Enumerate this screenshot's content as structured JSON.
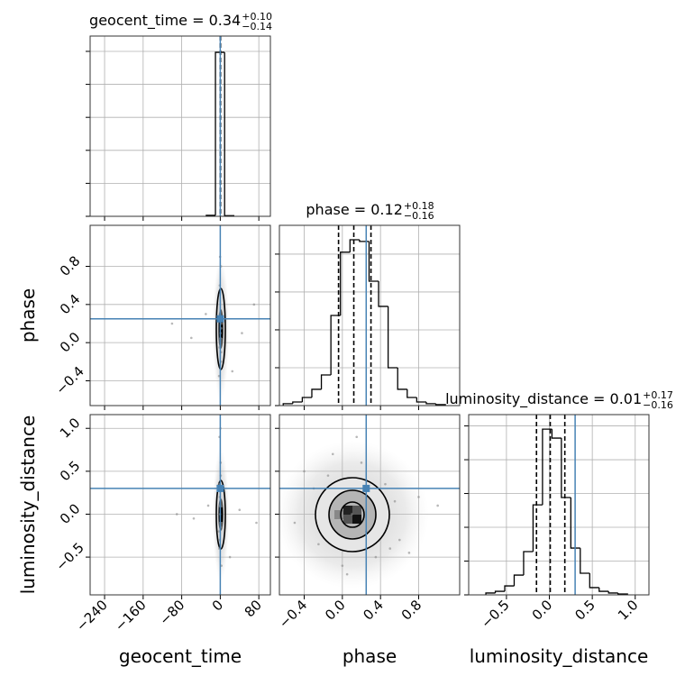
{
  "chart_data": {
    "type": "corner",
    "grid": true,
    "truth_color": "#4682b4",
    "parameters": [
      {
        "name": "geocent_time",
        "lim": [
          -270,
          104
        ],
        "ticks": [
          {
            "value": -240,
            "label": "−240"
          },
          {
            "value": -160,
            "label": "−160"
          },
          {
            "value": -80,
            "label": "−80"
          },
          0,
          80
        ],
        "truth": 0,
        "quantiles": [
          0.2,
          0.34,
          0.44
        ],
        "title": "geocent_time = 0.34",
        "title_sup": "+0.10",
        "title_sub": "−0.14",
        "hist": {
          "bins": [
            -29,
            -10,
            9,
            28
          ],
          "counts": [
            30,
            4970,
            20
          ],
          "ylim": [
            0,
            5464
          ],
          "yticks": [
            0,
            1000,
            2000,
            3000,
            4000,
            5000
          ]
        }
      },
      {
        "name": "phase",
        "lim": [
          -0.66,
          1.23
        ],
        "ticks": [
          {
            "value": -0.4,
            "label": "−0.4"
          },
          {
            "value": 0,
            "label": "0.0"
          },
          0.4,
          0.8
        ],
        "truth": 0.25,
        "quantiles": [
          -0.04,
          0.12,
          0.3
        ],
        "title": "phase = 0.12",
        "title_sup": "+0.18",
        "title_sub": "−0.16",
        "hist": {
          "bins": [
            -0.62,
            -0.52,
            -0.42,
            -0.32,
            -0.22,
            -0.12,
            -0.02,
            0.08,
            0.18,
            0.28,
            0.38,
            0.48,
            0.58,
            0.68,
            0.78,
            0.88,
            0.98,
            1.08
          ],
          "counts": [
            10,
            19,
            43,
            86,
            162,
            476,
            810,
            876,
            867,
            657,
            524,
            200,
            86,
            43,
            19,
            10,
            5
          ],
          "ylim": [
            0,
            952
          ],
          "yticks": [
            0,
            200,
            400,
            600,
            800
          ]
        }
      },
      {
        "name": "luminosity_distance",
        "lim": [
          -0.94,
          1.16
        ],
        "ticks": [
          {
            "value": -0.5,
            "label": "−0.5"
          },
          {
            "value": 0,
            "label": "0.0"
          },
          0.5,
          {
            "value": 1,
            "label": "1.0"
          }
        ],
        "truth": 0.3,
        "quantiles": [
          -0.15,
          0.01,
          0.18
        ],
        "title": "luminosity_distance = 0.01",
        "title_sup": "+0.17",
        "title_sub": "−0.16",
        "hist": {
          "bins": [
            -0.74,
            -0.63,
            -0.52,
            -0.41,
            -0.3,
            -0.19,
            -0.08,
            0.03,
            0.14,
            0.25,
            0.36,
            0.47,
            0.58,
            0.69,
            0.8,
            0.91
          ],
          "counts": [
            11,
            21,
            53,
            117,
            256,
            533,
            981,
            928,
            576,
            277,
            128,
            43,
            21,
            11,
            5
          ],
          "ylim": [
            0,
            1067
          ],
          "yticks": [
            0,
            200,
            400,
            600,
            800,
            1000
          ]
        }
      }
    ],
    "pairs": [
      {
        "x": [
          0.5,
          -1.2,
          2,
          -0.8,
          1.5,
          -2.5,
          0.3,
          3,
          -60,
          45,
          -30,
          70,
          -1,
          1.8,
          -0.4,
          0.9,
          -1.6,
          2.4,
          -100,
          25
        ],
        "y": [
          0.1,
          0.3,
          -0.2,
          0.5,
          0.8,
          -0.35,
          0.05,
          0.2,
          0.05,
          0.1,
          0.3,
          0.4,
          0.6,
          -0.1,
          0.9,
          0.25,
          -0.05,
          0.15,
          0.2,
          -0.3
        ]
      },
      {
        "x": [
          -0.5,
          1.1,
          -2,
          0.8,
          -1.5,
          2.5,
          -0.3,
          -3,
          -55,
          40,
          -25,
          75,
          1,
          -1.8,
          0.4,
          -0.9,
          1.6,
          -2.4,
          -90,
          20
        ],
        "y": [
          0,
          0.3,
          -0.4,
          0.6,
          0.9,
          -0.6,
          0.1,
          -0.2,
          -0.05,
          0.05,
          0.1,
          -0.1,
          0.45,
          -0.3,
          1.0,
          0.2,
          -0.15,
          0.35,
          0,
          -0.5
        ]
      },
      {
        "x": [
          0.1,
          -0.3,
          0.5,
          0.8,
          -0.5,
          0.2,
          0.35,
          -0.15,
          0.6,
          0,
          1.0,
          -0.4,
          0.45,
          0.25,
          -0.1,
          0.7,
          0.15,
          -0.25,
          0.55,
          0.05
        ],
        "y": [
          0,
          0.3,
          -0.4,
          0.2,
          -0.1,
          0.6,
          -0.5,
          0.45,
          -0.3,
          -0.6,
          0.1,
          0.5,
          0.35,
          -0.2,
          0.7,
          -0.45,
          0.9,
          -0.35,
          0.15,
          -0.7
        ]
      }
    ]
  }
}
